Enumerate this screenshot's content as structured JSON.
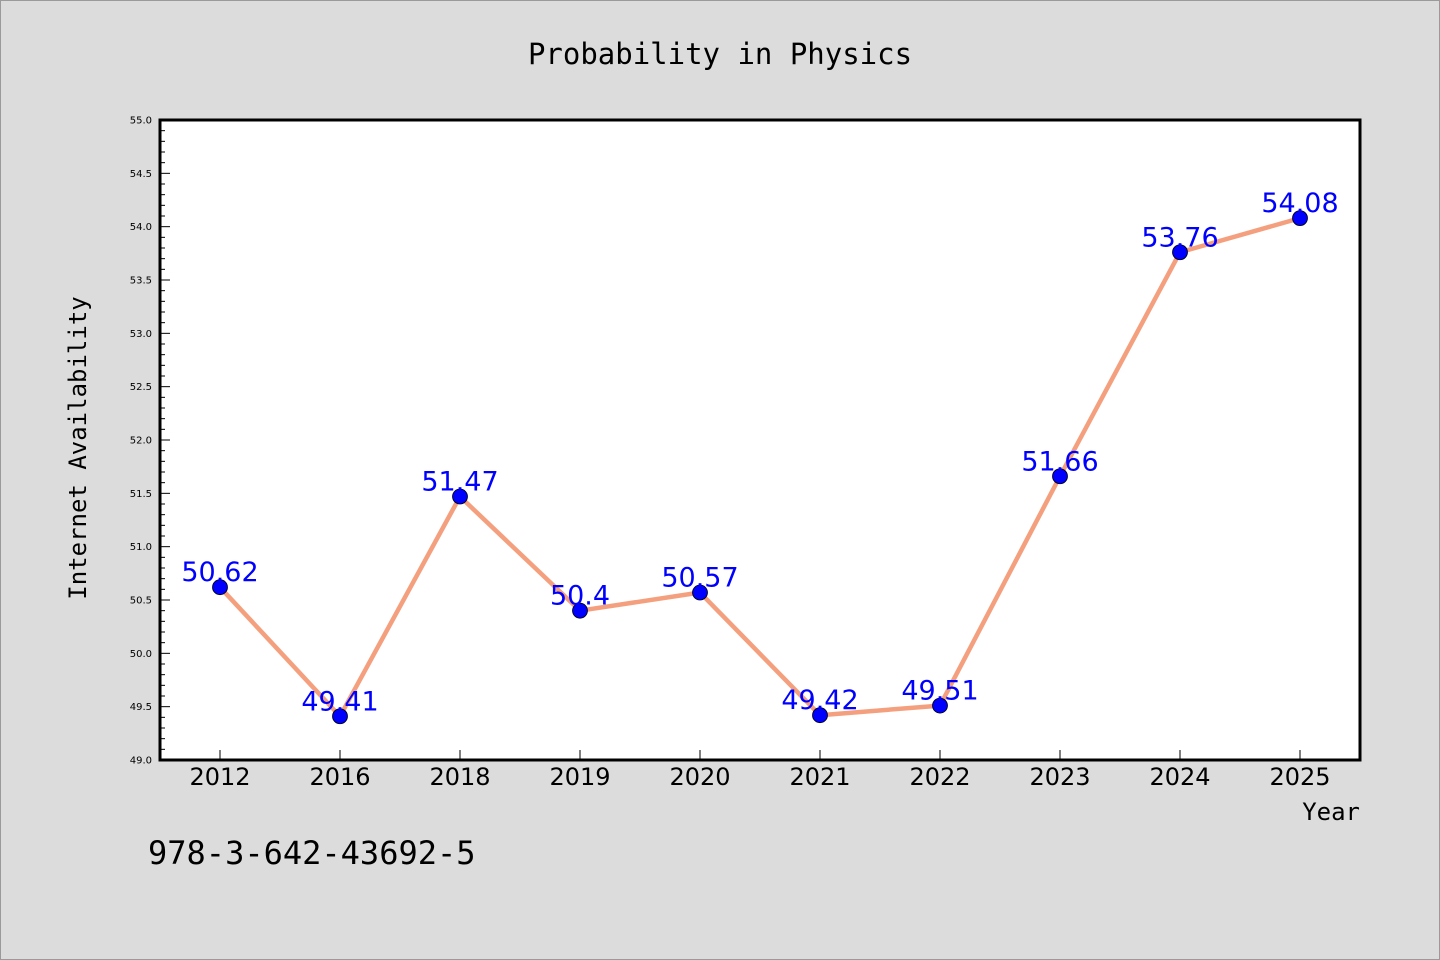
{
  "footer": {
    "isbn": "978-3-642-43692-5"
  },
  "colors": {
    "background": "#dcdcdc",
    "plot_background": "#ffffff",
    "line": "#f4a07e",
    "marker": "#0000ff",
    "data_label": "#0000ff",
    "axis": "#000000"
  },
  "chart_data": {
    "type": "line",
    "title": "Probability in Physics",
    "xlabel": "Year",
    "ylabel": "Internet Availability",
    "categories": [
      "2012",
      "2016",
      "2018",
      "2019",
      "2020",
      "2021",
      "2022",
      "2023",
      "2024",
      "2025"
    ],
    "series": [
      {
        "values": [
          50.62,
          49.41,
          51.47,
          50.4,
          50.57,
          49.42,
          49.51,
          51.66,
          53.76,
          54.08
        ],
        "labels": [
          "50.62",
          "49.41",
          "51.47",
          "50.4",
          "50.57",
          "49.42",
          "49.51",
          "51.66",
          "53.76",
          "54.08"
        ]
      }
    ],
    "ylim": [
      49.0,
      55.0
    ],
    "yticks": [
      "49.0",
      "49.5",
      "50.0",
      "50.5",
      "51.0",
      "51.5",
      "52.0",
      "52.5",
      "53.0",
      "53.5",
      "54.0",
      "54.5",
      "55.0"
    ],
    "grid": false,
    "legend": "none",
    "marker": "circle"
  }
}
